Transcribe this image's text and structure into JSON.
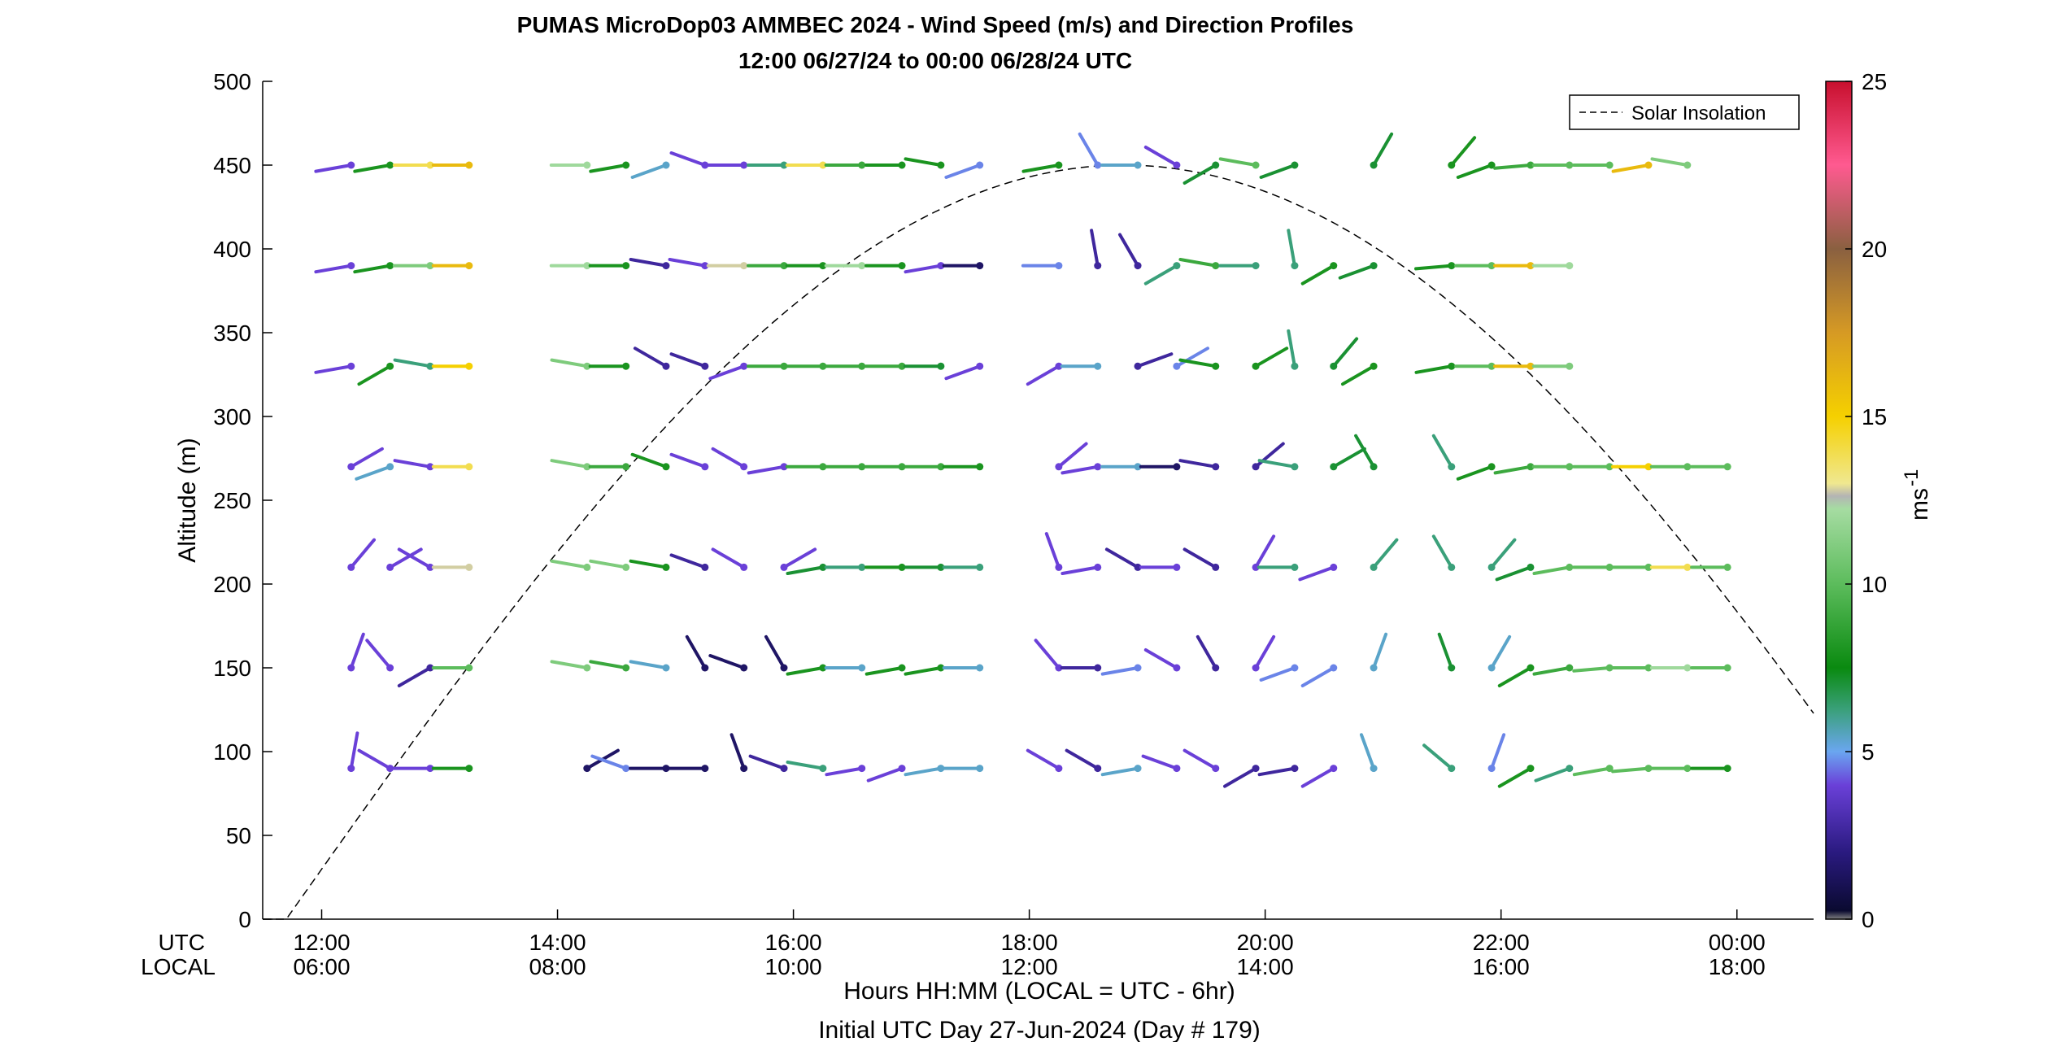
{
  "chart_data": {
    "type": "wind-barb-profile",
    "title": "PUMAS MicroDop03 AMMBEC 2024 - Wind Speed (m/s) and Direction Profiles",
    "subtitle": "12:00 06/27/24 to 00:00 06/28/24  UTC",
    "ylabel": "Altitude (m)",
    "ylim": [
      0,
      500
    ],
    "yticks": [
      0,
      50,
      100,
      150,
      200,
      250,
      300,
      350,
      400,
      450,
      500
    ],
    "xlim_hours": [
      11.5,
      24.65
    ],
    "xtick_hours": [
      12,
      14,
      16,
      18,
      20,
      22,
      24
    ],
    "xtick_utc": [
      "12:00",
      "14:00",
      "16:00",
      "18:00",
      "20:00",
      "22:00",
      "00:00"
    ],
    "xtick_local": [
      "06:00",
      "08:00",
      "10:00",
      "12:00",
      "14:00",
      "16:00",
      "18:00"
    ],
    "row_label_utc": "UTC",
    "row_label_local": "LOCAL",
    "xlabel": "Hours HH:MM  (LOCAL = UTC - 6hr)",
    "xlabel2": "Initial UTC Day 27-Jun-2024 (Day # 179)",
    "colorbar": {
      "label": "ms",
      "label_exp": "-1",
      "range": [
        0,
        25
      ],
      "ticks": [
        0,
        5,
        10,
        15,
        20,
        25
      ]
    },
    "legend": {
      "placement": "top-right",
      "entries": [
        "Solar Insolation"
      ]
    },
    "solar_curve": {
      "style": "dashed",
      "start_hour": 11.7,
      "peak_hour": 18.8,
      "peak_altitude": 450,
      "extends_past_right_edge": true
    },
    "altitudes": [
      90,
      150,
      210,
      270,
      330,
      390,
      450
    ],
    "times": [
      12.25,
      12.58,
      12.92,
      13.25,
      13.58,
      13.92,
      14.25,
      14.58,
      14.92,
      15.25,
      15.58,
      15.92,
      16.25,
      16.58,
      16.92,
      17.25,
      17.58,
      17.92,
      18.25,
      18.58,
      18.92,
      19.25,
      19.58,
      19.92,
      20.25,
      20.58,
      20.92,
      21.25,
      21.58,
      21.92,
      22.25,
      22.58,
      22.92,
      23.25,
      23.58,
      23.92
    ],
    "barbs": [
      [
        [
          12.25,
          90,
          3,
          350
        ],
        [
          12.58,
          90,
          3,
          60
        ],
        [
          12.92,
          90,
          3,
          90
        ],
        [
          13.25,
          90,
          8,
          90
        ],
        [
          14.25,
          90,
          1,
          300
        ],
        [
          14.58,
          90,
          4,
          70
        ],
        [
          14.92,
          90,
          1,
          90
        ],
        [
          15.25,
          90,
          1,
          90
        ],
        [
          15.58,
          90,
          1,
          20
        ],
        [
          15.92,
          90,
          2,
          70
        ],
        [
          16.25,
          90,
          6,
          80
        ],
        [
          16.58,
          90,
          3,
          100
        ],
        [
          16.92,
          90,
          3,
          110
        ],
        [
          17.25,
          90,
          5,
          100
        ],
        [
          17.58,
          90,
          5,
          90
        ],
        [
          18.25,
          90,
          3,
          60
        ],
        [
          18.58,
          90,
          2,
          60
        ],
        [
          18.92,
          90,
          5,
          100
        ],
        [
          19.25,
          90,
          3,
          70
        ],
        [
          19.58,
          90,
          3,
          60
        ],
        [
          19.92,
          90,
          2,
          120
        ],
        [
          20.25,
          90,
          2,
          100
        ],
        [
          20.58,
          90,
          3,
          120
        ],
        [
          20.92,
          90,
          5,
          20
        ],
        [
          21.58,
          90,
          6,
          50
        ],
        [
          21.92,
          90,
          4,
          340
        ],
        [
          22.25,
          90,
          8,
          120
        ],
        [
          22.58,
          90,
          6,
          110
        ],
        [
          22.92,
          90,
          10,
          100
        ],
        [
          23.25,
          90,
          10,
          95
        ],
        [
          23.58,
          90,
          10,
          90
        ],
        [
          23.92,
          90,
          8,
          90
        ]
      ],
      [
        [
          12.25,
          150,
          3,
          340
        ],
        [
          12.58,
          150,
          3,
          40
        ],
        [
          12.92,
          150,
          2,
          120
        ],
        [
          13.25,
          150,
          10,
          90
        ],
        [
          14.25,
          150,
          11,
          80
        ],
        [
          14.58,
          150,
          9,
          80
        ],
        [
          14.92,
          150,
          5,
          80
        ],
        [
          15.25,
          150,
          1,
          30
        ],
        [
          15.58,
          150,
          1,
          70
        ],
        [
          15.92,
          150,
          1,
          30
        ],
        [
          16.25,
          150,
          8,
          100
        ],
        [
          16.58,
          150,
          5,
          90
        ],
        [
          16.92,
          150,
          8,
          100
        ],
        [
          17.25,
          150,
          8,
          100
        ],
        [
          17.58,
          150,
          5,
          90
        ],
        [
          18.25,
          150,
          3,
          40
        ],
        [
          18.58,
          150,
          2,
          90
        ],
        [
          18.92,
          150,
          4,
          100
        ],
        [
          19.25,
          150,
          3,
          60
        ],
        [
          19.58,
          150,
          2,
          30
        ],
        [
          19.92,
          150,
          3,
          330
        ],
        [
          20.25,
          150,
          4,
          110
        ],
        [
          20.58,
          150,
          4,
          120
        ],
        [
          20.92,
          150,
          5,
          340
        ],
        [
          21.58,
          150,
          7,
          20
        ],
        [
          21.92,
          150,
          5,
          330
        ],
        [
          22.25,
          150,
          8,
          120
        ],
        [
          22.58,
          150,
          9,
          100
        ],
        [
          22.92,
          150,
          10,
          95
        ],
        [
          23.25,
          150,
          10,
          90
        ],
        [
          23.58,
          150,
          12,
          90
        ],
        [
          23.92,
          150,
          10,
          90
        ]
      ],
      [
        [
          12.25,
          210,
          3,
          320
        ],
        [
          12.58,
          210,
          3,
          300
        ],
        [
          12.92,
          210,
          3,
          60
        ],
        [
          13.25,
          210,
          13,
          90
        ],
        [
          14.25,
          210,
          11,
          80
        ],
        [
          14.58,
          210,
          11,
          80
        ],
        [
          14.92,
          210,
          8,
          80
        ],
        [
          15.25,
          210,
          2,
          70
        ],
        [
          15.58,
          210,
          3,
          60
        ],
        [
          15.92,
          210,
          3,
          300
        ],
        [
          16.25,
          210,
          7,
          100
        ],
        [
          16.58,
          210,
          6,
          90
        ],
        [
          16.92,
          210,
          8,
          90
        ],
        [
          17.25,
          210,
          7,
          90
        ],
        [
          17.58,
          210,
          6,
          90
        ],
        [
          18.25,
          210,
          3,
          20
        ],
        [
          18.58,
          210,
          3,
          100
        ],
        [
          18.92,
          210,
          2,
          60
        ],
        [
          19.25,
          210,
          3,
          90
        ],
        [
          19.58,
          210,
          2,
          60
        ],
        [
          19.92,
          210,
          3,
          330
        ],
        [
          20.25,
          210,
          6,
          90
        ],
        [
          20.58,
          210,
          3,
          110
        ],
        [
          20.92,
          210,
          6,
          320
        ],
        [
          21.58,
          210,
          6,
          30
        ],
        [
          21.92,
          210,
          6,
          320
        ],
        [
          22.25,
          210,
          7,
          110
        ],
        [
          22.58,
          210,
          10,
          100
        ],
        [
          22.92,
          210,
          10,
          90
        ],
        [
          23.25,
          210,
          10,
          90
        ],
        [
          23.58,
          210,
          14,
          90
        ],
        [
          23.92,
          210,
          10,
          90
        ]
      ],
      [
        [
          12.25,
          270,
          3,
          300
        ],
        [
          12.58,
          270,
          5,
          110
        ],
        [
          12.92,
          270,
          3,
          80
        ],
        [
          13.25,
          270,
          14,
          90
        ],
        [
          14.25,
          270,
          11,
          80
        ],
        [
          14.58,
          270,
          9,
          90
        ],
        [
          14.92,
          270,
          8,
          70
        ],
        [
          15.25,
          270,
          3,
          70
        ],
        [
          15.58,
          270,
          3,
          60
        ],
        [
          15.92,
          270,
          3,
          100
        ],
        [
          16.25,
          270,
          9,
          90
        ],
        [
          16.58,
          270,
          9,
          90
        ],
        [
          16.92,
          270,
          9,
          90
        ],
        [
          17.25,
          270,
          9,
          90
        ],
        [
          17.58,
          270,
          8,
          90
        ],
        [
          18.25,
          270,
          3,
          310
        ],
        [
          18.58,
          270,
          3,
          100
        ],
        [
          18.92,
          270,
          5,
          90
        ],
        [
          19.25,
          270,
          1,
          90
        ],
        [
          19.58,
          270,
          2,
          80
        ],
        [
          19.92,
          270,
          2,
          310
        ],
        [
          20.25,
          270,
          6,
          80
        ],
        [
          20.58,
          270,
          7,
          300
        ],
        [
          20.92,
          270,
          7,
          30
        ],
        [
          21.58,
          270,
          6,
          30
        ],
        [
          21.92,
          270,
          8,
          110
        ],
        [
          22.25,
          270,
          9,
          100
        ],
        [
          22.58,
          270,
          10,
          90
        ],
        [
          22.92,
          270,
          10,
          90
        ],
        [
          23.25,
          270,
          15,
          90
        ],
        [
          23.58,
          270,
          10,
          90
        ],
        [
          23.92,
          270,
          10,
          90
        ]
      ],
      [
        [
          12.25,
          330,
          3,
          100
        ],
        [
          12.58,
          330,
          8,
          120
        ],
        [
          12.92,
          330,
          6,
          80
        ],
        [
          13.25,
          330,
          15,
          90
        ],
        [
          14.25,
          330,
          11,
          80
        ],
        [
          14.58,
          330,
          8,
          90
        ],
        [
          14.92,
          330,
          2,
          60
        ],
        [
          15.25,
          330,
          2,
          70
        ],
        [
          15.58,
          330,
          3,
          110
        ],
        [
          15.92,
          330,
          9,
          90
        ],
        [
          16.25,
          330,
          9,
          90
        ],
        [
          16.58,
          330,
          9,
          90
        ],
        [
          16.92,
          330,
          9,
          90
        ],
        [
          17.25,
          330,
          7,
          90
        ],
        [
          17.58,
          330,
          3,
          110
        ],
        [
          18.25,
          330,
          3,
          120
        ],
        [
          18.58,
          330,
          5,
          90
        ],
        [
          18.92,
          330,
          2,
          290
        ],
        [
          19.25,
          330,
          4,
          300
        ],
        [
          19.58,
          330,
          8,
          80
        ],
        [
          19.92,
          330,
          8,
          300
        ],
        [
          20.25,
          330,
          6,
          10
        ],
        [
          20.58,
          330,
          7,
          320
        ],
        [
          20.92,
          330,
          8,
          120
        ],
        [
          21.58,
          330,
          8,
          100
        ],
        [
          21.92,
          330,
          10,
          90
        ],
        [
          22.25,
          330,
          16,
          90
        ],
        [
          22.58,
          330,
          11,
          90
        ]
      ],
      [
        [
          12.25,
          390,
          3,
          100
        ],
        [
          12.58,
          390,
          8,
          100
        ],
        [
          12.92,
          390,
          11,
          90
        ],
        [
          13.25,
          390,
          16,
          90
        ],
        [
          14.25,
          390,
          12,
          90
        ],
        [
          14.58,
          390,
          8,
          90
        ],
        [
          14.92,
          390,
          2,
          80
        ],
        [
          15.25,
          390,
          3,
          80
        ],
        [
          15.58,
          390,
          13,
          90
        ],
        [
          15.92,
          390,
          9,
          90
        ],
        [
          16.25,
          390,
          8,
          90
        ],
        [
          16.58,
          390,
          12,
          90
        ],
        [
          16.92,
          390,
          8,
          90
        ],
        [
          17.25,
          390,
          3,
          100
        ],
        [
          17.58,
          390,
          1,
          90
        ],
        [
          18.25,
          390,
          4,
          90
        ],
        [
          18.58,
          390,
          2,
          10
        ],
        [
          18.92,
          390,
          2,
          30
        ],
        [
          19.25,
          390,
          6,
          120
        ],
        [
          19.58,
          390,
          9,
          80
        ],
        [
          19.92,
          390,
          6,
          90
        ],
        [
          20.25,
          390,
          6,
          10
        ],
        [
          20.58,
          390,
          8,
          120
        ],
        [
          20.92,
          390,
          7,
          110
        ],
        [
          21.58,
          390,
          8,
          95
        ],
        [
          21.92,
          390,
          10,
          90
        ],
        [
          22.25,
          390,
          16,
          90
        ],
        [
          22.58,
          390,
          12,
          90
        ]
      ],
      [
        [
          12.25,
          450,
          3,
          100
        ],
        [
          12.58,
          450,
          8,
          100
        ],
        [
          12.92,
          450,
          14,
          90
        ],
        [
          13.25,
          450,
          16,
          90
        ],
        [
          14.25,
          450,
          12,
          90
        ],
        [
          14.58,
          450,
          8,
          100
        ],
        [
          14.92,
          450,
          5,
          110
        ],
        [
          15.25,
          450,
          3,
          70
        ],
        [
          15.58,
          450,
          3,
          90
        ],
        [
          15.92,
          450,
          6,
          90
        ],
        [
          16.25,
          450,
          14,
          90
        ],
        [
          16.58,
          450,
          9,
          90
        ],
        [
          16.92,
          450,
          8,
          90
        ],
        [
          17.25,
          450,
          8,
          80
        ],
        [
          17.58,
          450,
          4,
          110
        ],
        [
          18.25,
          450,
          8,
          100
        ],
        [
          18.58,
          450,
          4,
          30
        ],
        [
          18.92,
          450,
          5,
          90
        ],
        [
          19.25,
          450,
          3,
          60
        ],
        [
          19.58,
          450,
          7,
          120
        ],
        [
          19.92,
          450,
          10,
          80
        ],
        [
          20.25,
          450,
          7,
          110
        ],
        [
          20.92,
          450,
          7,
          330
        ],
        [
          21.58,
          450,
          8,
          320
        ],
        [
          21.92,
          450,
          8,
          110
        ],
        [
          22.25,
          450,
          9,
          95
        ],
        [
          22.58,
          450,
          10,
          90
        ],
        [
          22.92,
          450,
          10,
          90
        ],
        [
          23.25,
          450,
          16,
          100
        ],
        [
          23.58,
          450,
          11,
          80
        ]
      ]
    ]
  }
}
